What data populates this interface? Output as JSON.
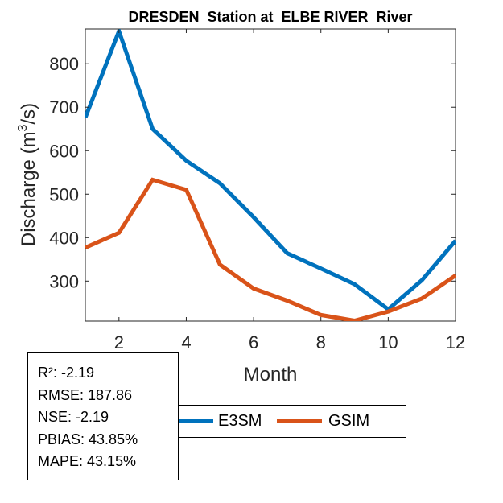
{
  "chart_data": {
    "type": "line",
    "title": "DRESDEN  Station at  ELBE RIVER  River",
    "xlabel": "Month",
    "ylabel": "Discharge (m3/s)",
    "ylabel_parts": {
      "base": "Discharge (m",
      "sup": "3",
      "end": "/s)"
    },
    "x": [
      1,
      2,
      3,
      4,
      5,
      6,
      7,
      8,
      9,
      10,
      11,
      12
    ],
    "xlim": [
      1,
      12
    ],
    "ylim": [
      208,
      880
    ],
    "xticks": [
      "2",
      "4",
      "6",
      "8",
      "10",
      "12"
    ],
    "yticks": [
      "300",
      "400",
      "500",
      "600",
      "700",
      "800"
    ],
    "grid": false,
    "legend_position": "bottom-center",
    "series": [
      {
        "name": "E3SM",
        "color": "#0072bd",
        "values": [
          676,
          875,
          650,
          577,
          525,
          447,
          364,
          329,
          293,
          235,
          302,
          393
        ]
      },
      {
        "name": "GSIM",
        "color": "#d95319",
        "values": [
          377,
          411,
          533,
          510,
          338,
          283,
          255,
          222,
          209,
          230,
          260,
          313
        ]
      }
    ]
  },
  "stats": {
    "lines": [
      "R²: -2.19",
      "RMSE: 187.86",
      "NSE: -2.19",
      "PBIAS: 43.85%",
      "MAPE: 43.15%"
    ]
  }
}
